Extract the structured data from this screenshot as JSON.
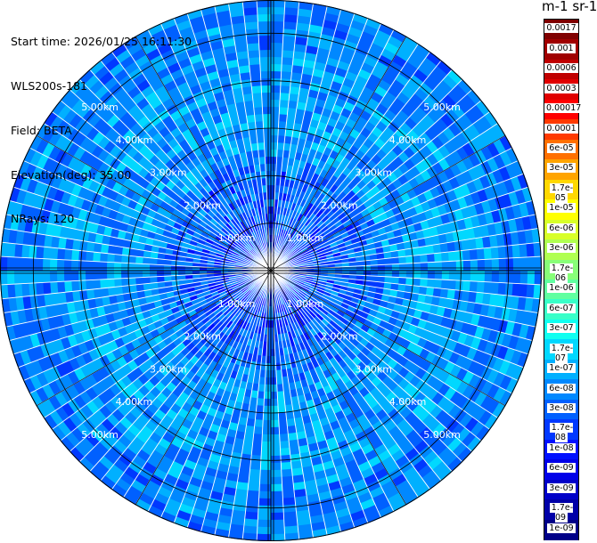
{
  "info": {
    "start_time": "Start time: 2026/01/25 16:11:30",
    "instrument": "WLS200s-181",
    "field": "Field: BETA",
    "elevation": "Elevation(deg): 35.00",
    "nrays": "NRays: 120"
  },
  "colorbar": {
    "unit_title": "m-1 sr-1",
    "labels": [
      "0.0017",
      "0.001",
      "0.0006",
      "0.0003",
      "0.00017",
      "0.0001",
      "6e-05",
      "3e-05",
      "1.7e-05",
      "1e-05",
      "6e-06",
      "3e-06",
      "1.7e-06",
      "1e-06",
      "6e-07",
      "3e-07",
      "1.7e-07",
      "1e-07",
      "6e-08",
      "3e-08",
      "1.7e-08",
      "1e-08",
      "6e-09",
      "3e-09",
      "1.7e-09",
      "1e-09"
    ],
    "colors": [
      "#800000",
      "#a00000",
      "#c00000",
      "#e00000",
      "#ff0000",
      "#ff3a00",
      "#ff7000",
      "#ffa400",
      "#ffd800",
      "#ffff00",
      "#d8ff28",
      "#b0ff50",
      "#88ff78",
      "#60ffa0",
      "#38ffc8",
      "#10fff0",
      "#00d8ff",
      "#00b0ff",
      "#0088ff",
      "#0060ff",
      "#0038ff",
      "#0010ff",
      "#0000e8",
      "#0000c8",
      "#0000a8",
      "#000088"
    ]
  },
  "chart_data": {
    "type": "heatmap",
    "projection": "polar PPI scan",
    "field": "BETA",
    "elevation_deg": 35.0,
    "n_rays": 120,
    "range_rings_km": [
      1.0,
      2.0,
      3.0,
      4.0,
      5.0
    ],
    "range_ring_labels": [
      "1.00km",
      "2.00km",
      "3.00km",
      "4.00km",
      "5.00km"
    ],
    "max_range_km": 5.7,
    "color_scale": "log",
    "value_range": [
      1e-09,
      0.0017
    ],
    "dominant_values": {
      "near_range": "6e-09 to 3e-08",
      "far_range": "3e-08 to 1.7e-07"
    }
  }
}
